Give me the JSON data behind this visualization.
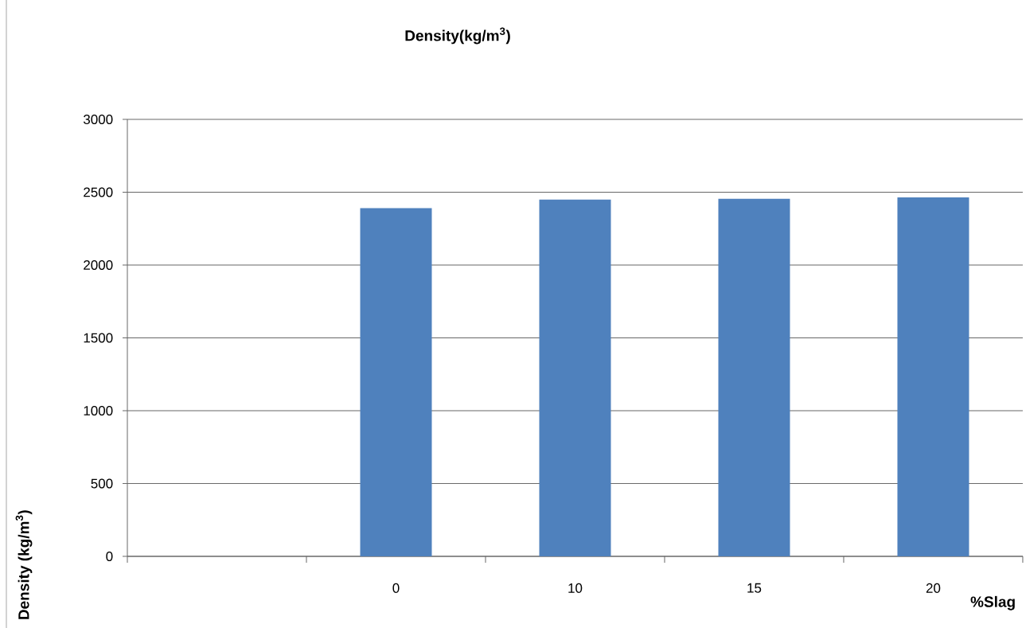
{
  "chart_data": {
    "type": "bar",
    "title": "Density(kg/m$^{3}$)",
    "xlabel": "%Slag",
    "ylabel": "Density (kg/m$^{3}$)",
    "categories": [
      null,
      "0",
      "10",
      "15",
      "20"
    ],
    "values": [
      null,
      2390,
      2450,
      2455,
      2465
    ],
    "color": "#4f81bd",
    "ylim": [
      0,
      3000
    ],
    "yticks": [
      0,
      500,
      1000,
      1500,
      2000,
      2500,
      3000
    ],
    "grid": "y"
  }
}
